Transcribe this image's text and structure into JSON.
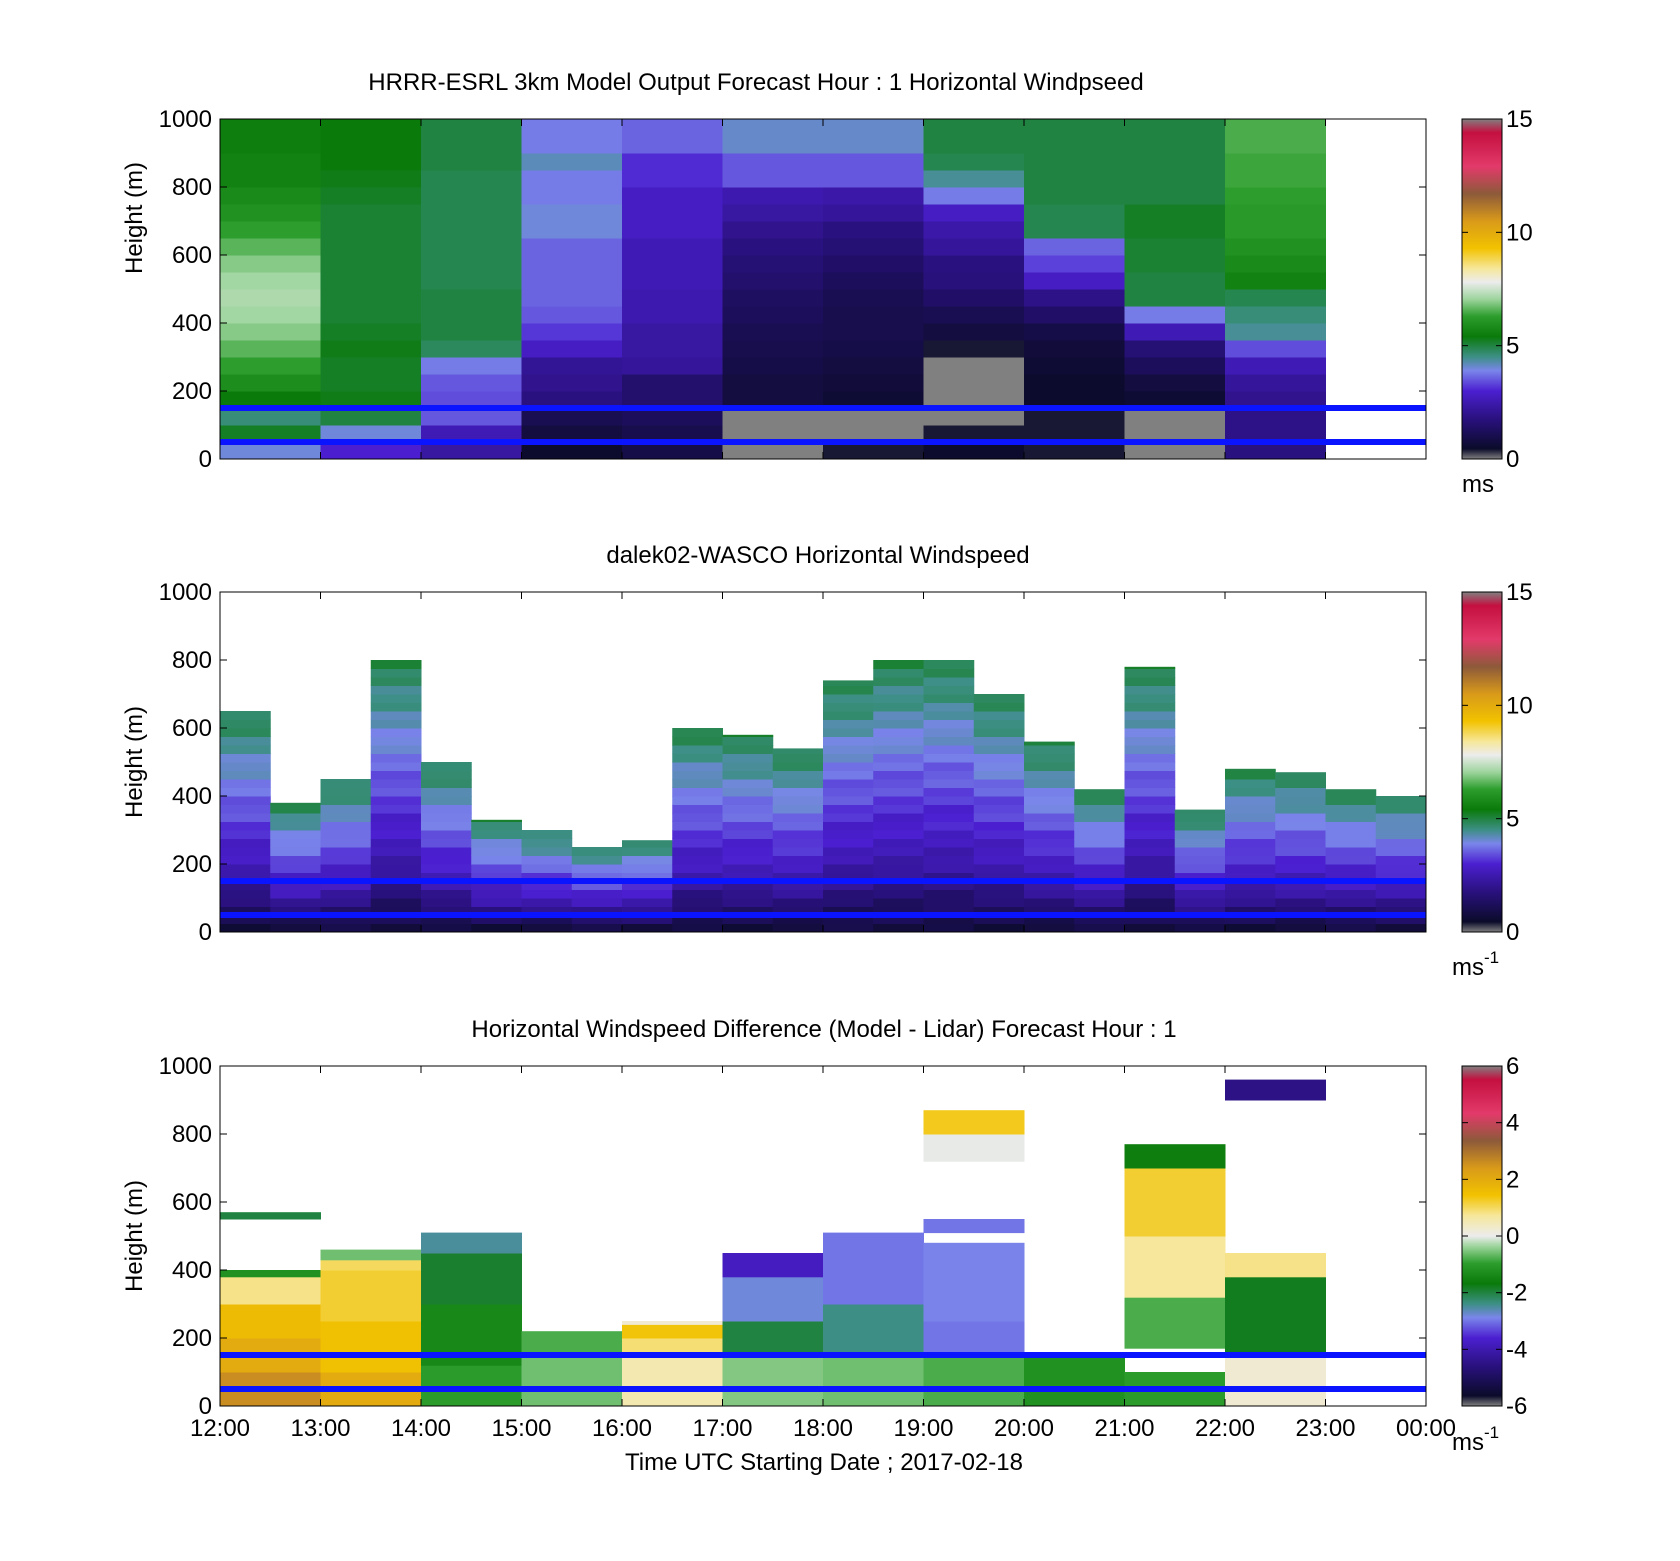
{
  "colors": {
    "hub_line": "#0a14ff",
    "missing": "#808080"
  },
  "panels": [
    {
      "name": "model",
      "title": "HRRR-ESRL 3km Model Output   Forecast Hour : 1 Horizontal Windpseed",
      "ylabel": "Height (m)",
      "colorbar_unit": "ms",
      "colorbar_unit_sup": ""
    },
    {
      "name": "lidar",
      "title": "dalek02-WASCO  Horizontal Windspeed",
      "ylabel": "Height (m)",
      "colorbar_unit": "ms",
      "colorbar_unit_sup": "-1"
    },
    {
      "name": "difference",
      "title": "Horizontal Windspeed Difference (Model - Lidar) Forecast Hour : 1",
      "ylabel": "Height (m)",
      "colorbar_unit": "ms",
      "colorbar_unit_sup": "-1",
      "xlabel": "Time UTC  Starting Date ; 2017-02-18"
    }
  ],
  "chart_data": [
    {
      "type": "heatmap",
      "title": "HRRR-ESRL 3km Model Output   Forecast Hour : 1 Horizontal Windpseed",
      "ylabel": "Height (m)",
      "ylim": [
        0,
        1000
      ],
      "yticks": [
        0,
        200,
        400,
        600,
        800,
        1000
      ],
      "xticks": [
        "12:00",
        "13:00",
        "14:00",
        "15:00",
        "16:00",
        "17:00",
        "18:00",
        "19:00",
        "20:00",
        "21:00",
        "22:00",
        "23:00",
        "00:00"
      ],
      "colorbar": {
        "min": 0,
        "max": 15,
        "ticks": [
          0,
          5,
          10,
          15
        ],
        "unit": "ms"
      },
      "hub_heights_m": [
        50,
        150
      ],
      "heights_m": [
        0,
        50,
        100,
        150,
        200,
        250,
        300,
        350,
        400,
        450,
        500,
        550,
        600,
        650,
        700,
        750,
        800,
        850,
        900,
        950,
        1000
      ],
      "columns": [
        {
          "time": "12:00",
          "speeds_ms": [
            4.0,
            5.2,
            4.6,
            5.4,
            5.9,
            6.3,
            6.6,
            6.9,
            7.1,
            7.2,
            7.1,
            6.9,
            6.6,
            6.3,
            6.0,
            5.8,
            5.6,
            5.6,
            5.5,
            5.5
          ]
        },
        {
          "time": "13:00",
          "speeds_ms": [
            3.0,
            4.0,
            5.0,
            5.3,
            5.2,
            5.2,
            5.3,
            5.2,
            5.1,
            5.1,
            5.1,
            5.1,
            5.1,
            5.1,
            5.1,
            5.2,
            5.3,
            5.4,
            5.4,
            5.4
          ]
        },
        {
          "time": "14:00",
          "speeds_ms": [
            2.3,
            2.6,
            3.5,
            3.4,
            3.5,
            3.8,
            4.8,
            5.0,
            5.0,
            5.0,
            4.9,
            4.9,
            4.9,
            4.9,
            4.9,
            4.9,
            4.9,
            5.0,
            5.0,
            5.0
          ]
        },
        {
          "time": "15:00",
          "speeds_ms": [
            0.5,
            0.8,
            1.1,
            1.8,
            2.0,
            2.1,
            2.8,
            3.2,
            3.5,
            3.6,
            3.6,
            3.6,
            3.6,
            4.0,
            4.0,
            3.8,
            3.8,
            4.2,
            3.8,
            3.8
          ]
        },
        {
          "time": "16:00",
          "speeds_ms": [
            0.9,
            1.0,
            1.2,
            1.5,
            1.5,
            2.2,
            2.3,
            2.3,
            2.5,
            2.5,
            2.6,
            2.6,
            2.6,
            2.8,
            2.8,
            2.8,
            3.1,
            3.1,
            3.6,
            3.6
          ]
        },
        {
          "time": "17:00",
          "speeds_ms": [
            0.0,
            0.0,
            0.0,
            0.8,
            0.8,
            0.9,
            1.0,
            1.1,
            1.2,
            1.3,
            1.5,
            1.6,
            1.8,
            2.0,
            2.3,
            2.5,
            3.5,
            3.5,
            4.1,
            4.1
          ]
        },
        {
          "time": "18:00",
          "speeds_ms": [
            0.4,
            0.0,
            0.0,
            0.6,
            0.7,
            0.8,
            0.9,
            1.0,
            1.0,
            1.1,
            1.2,
            1.4,
            1.6,
            1.8,
            2.2,
            2.4,
            3.5,
            3.5,
            4.1,
            4.1
          ]
        },
        {
          "time": "19:00",
          "speeds_ms": [
            0.5,
            0.4,
            0.0,
            0.0,
            0.0,
            0.0,
            0.4,
            0.8,
            1.1,
            1.4,
            1.7,
            1.8,
            2.2,
            2.4,
            2.8,
            3.8,
            4.4,
            4.9,
            5.0,
            5.0
          ]
        },
        {
          "time": "20:00",
          "speeds_ms": [
            0.4,
            0.4,
            0.4,
            0.5,
            0.5,
            0.6,
            0.7,
            0.9,
            1.4,
            1.9,
            2.8,
            3.3,
            3.6,
            4.9,
            4.9,
            5.0,
            5.0,
            5.0,
            5.0,
            5.0
          ]
        },
        {
          "time": "21:00",
          "speeds_ms": [
            0.0,
            0.0,
            0.0,
            0.6,
            0.8,
            1.2,
            1.6,
            2.6,
            3.8,
            5.0,
            5.0,
            5.1,
            5.1,
            5.2,
            5.2,
            5.0,
            5.0,
            5.0,
            5.0,
            5.0
          ]
        },
        {
          "time": "22:00",
          "speeds_ms": [
            1.8,
            1.9,
            1.9,
            2.0,
            2.2,
            2.6,
            3.4,
            4.4,
            4.6,
            4.9,
            5.6,
            5.8,
            6.0,
            6.2,
            6.2,
            6.3,
            6.4,
            6.4,
            6.5,
            6.5
          ]
        }
      ]
    },
    {
      "type": "heatmap",
      "title": "dalek02-WASCO  Horizontal Windspeed",
      "ylabel": "Height (m)",
      "ylim": [
        0,
        1000
      ],
      "yticks": [
        0,
        200,
        400,
        600,
        800,
        1000
      ],
      "colorbar": {
        "min": 0,
        "max": 15,
        "ticks": [
          0,
          5,
          10,
          15
        ],
        "unit": "ms-1"
      },
      "hub_heights_m": [
        50,
        150
      ],
      "profile_top_m": [
        {
          "time": "12:00",
          "top_m": 650
        },
        {
          "time": "12:30",
          "top_m": 380
        },
        {
          "time": "13:00",
          "top_m": 450
        },
        {
          "time": "13:30",
          "top_m": 800
        },
        {
          "time": "14:00",
          "top_m": 500
        },
        {
          "time": "14:30",
          "top_m": 330
        },
        {
          "time": "15:00",
          "top_m": 300
        },
        {
          "time": "15:30",
          "top_m": 250
        },
        {
          "time": "16:00",
          "top_m": 270
        },
        {
          "time": "16:30",
          "top_m": 600
        },
        {
          "time": "17:00",
          "top_m": 580
        },
        {
          "time": "17:30",
          "top_m": 540
        },
        {
          "time": "18:00",
          "top_m": 740
        },
        {
          "time": "18:30",
          "top_m": 800
        },
        {
          "time": "19:00",
          "top_m": 800
        },
        {
          "time": "19:30",
          "top_m": 700
        },
        {
          "time": "20:00",
          "top_m": 560
        },
        {
          "time": "20:30",
          "top_m": 420
        },
        {
          "time": "21:00",
          "top_m": 780
        },
        {
          "time": "21:30",
          "top_m": 360
        },
        {
          "time": "22:00",
          "top_m": 480
        },
        {
          "time": "22:30",
          "top_m": 470
        },
        {
          "time": "23:00",
          "top_m": 420
        },
        {
          "time": "23:30",
          "top_m": 400
        }
      ],
      "profile_speed_ms": {
        "surface": 0.8,
        "mid": 2.5,
        "top": 5.0
      }
    },
    {
      "type": "heatmap",
      "title": "Horizontal Windspeed Difference (Model - Lidar) Forecast Hour : 1",
      "ylabel": "Height (m)",
      "xlabel": "Time UTC  Starting Date ; 2017-02-18",
      "ylim": [
        0,
        1000
      ],
      "yticks": [
        0,
        200,
        400,
        600,
        800,
        1000
      ],
      "xticks": [
        "12:00",
        "13:00",
        "14:00",
        "15:00",
        "16:00",
        "17:00",
        "18:00",
        "19:00",
        "20:00",
        "21:00",
        "22:00",
        "23:00",
        "00:00"
      ],
      "colorbar": {
        "min": -6,
        "max": 6,
        "ticks": [
          -6,
          -4,
          -2,
          0,
          2,
          4,
          6
        ],
        "unit": "ms-1"
      },
      "hub_heights_m": [
        50,
        150
      ],
      "blocks": [
        {
          "time": "12:00",
          "bands": [
            {
              "from": 0,
              "to": 100,
              "diff": 2.6
            },
            {
              "from": 100,
              "to": 200,
              "diff": 2.0
            },
            {
              "from": 200,
              "to": 300,
              "diff": 1.6
            },
            {
              "from": 300,
              "to": 380,
              "diff": 0.8
            },
            {
              "from": 380,
              "to": 400,
              "diff": -1.2
            },
            {
              "from": 550,
              "to": 570,
              "diff": -2.0
            }
          ]
        },
        {
          "time": "13:00",
          "bands": [
            {
              "from": 0,
              "to": 100,
              "diff": 2.0
            },
            {
              "from": 100,
              "to": 250,
              "diff": 1.5
            },
            {
              "from": 250,
              "to": 400,
              "diff": 1.2
            },
            {
              "from": 400,
              "to": 430,
              "diff": 1.0
            },
            {
              "from": 430,
              "to": 460,
              "diff": -0.6
            }
          ]
        },
        {
          "time": "14:00",
          "bands": [
            {
              "from": 0,
              "to": 120,
              "diff": -1.0
            },
            {
              "from": 120,
              "to": 300,
              "diff": -1.4
            },
            {
              "from": 300,
              "to": 450,
              "diff": -1.9
            },
            {
              "from": 450,
              "to": 510,
              "diff": -2.5
            }
          ]
        },
        {
          "time": "15:00",
          "bands": [
            {
              "from": 0,
              "to": 150,
              "diff": -0.6
            },
            {
              "from": 150,
              "to": 220,
              "diff": -0.8
            }
          ]
        },
        {
          "time": "16:00",
          "bands": [
            {
              "from": 0,
              "to": 150,
              "diff": 0.6
            },
            {
              "from": 150,
              "to": 200,
              "diff": 0.9
            },
            {
              "from": 200,
              "to": 240,
              "diff": 1.4
            },
            {
              "from": 240,
              "to": 250,
              "diff": 0.4
            }
          ]
        },
        {
          "time": "17:00",
          "bands": [
            {
              "from": 0,
              "to": 150,
              "diff": -0.5
            },
            {
              "from": 150,
              "to": 250,
              "diff": -2.0
            },
            {
              "from": 250,
              "to": 380,
              "diff": -2.8
            },
            {
              "from": 380,
              "to": 450,
              "diff": -3.8
            }
          ]
        },
        {
          "time": "18:00",
          "bands": [
            {
              "from": 0,
              "to": 150,
              "diff": -0.6
            },
            {
              "from": 150,
              "to": 300,
              "diff": -2.4
            },
            {
              "from": 300,
              "to": 510,
              "diff": -3.0
            }
          ]
        },
        {
          "time": "19:00",
          "bands": [
            {
              "from": 0,
              "to": 150,
              "diff": -0.8
            },
            {
              "from": 150,
              "to": 250,
              "diff": -3.0
            },
            {
              "from": 250,
              "to": 480,
              "diff": -2.9
            },
            {
              "from": 510,
              "to": 550,
              "diff": -3.0
            },
            {
              "from": 720,
              "to": 800,
              "diff": 0.2
            },
            {
              "from": 800,
              "to": 870,
              "diff": 1.3
            }
          ]
        },
        {
          "time": "20:00",
          "bands": [
            {
              "from": 0,
              "to": 150,
              "diff": -1.2
            }
          ]
        },
        {
          "time": "21:00",
          "bands": [
            {
              "from": 0,
              "to": 100,
              "diff": -1.0
            },
            {
              "from": 170,
              "to": 320,
              "diff": -0.8
            },
            {
              "from": 320,
              "to": 500,
              "diff": 0.7
            },
            {
              "from": 500,
              "to": 700,
              "diff": 1.2
            },
            {
              "from": 700,
              "to": 770,
              "diff": -1.6
            }
          ]
        },
        {
          "time": "22:00",
          "bands": [
            {
              "from": 0,
              "to": 160,
              "diff": 0.4
            },
            {
              "from": 160,
              "to": 380,
              "diff": -1.8
            },
            {
              "from": 380,
              "to": 450,
              "diff": 0.8
            },
            {
              "from": 900,
              "to": 960,
              "diff": -4.5
            }
          ]
        }
      ]
    }
  ]
}
